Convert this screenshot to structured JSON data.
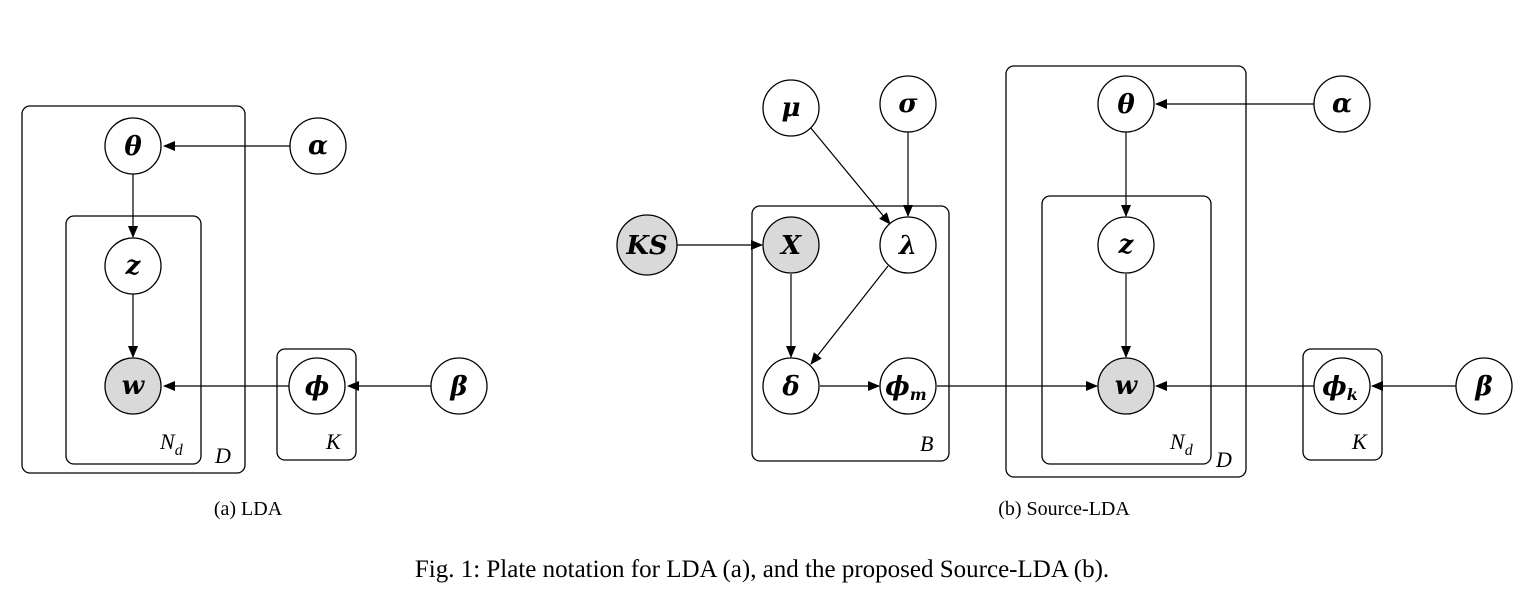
{
  "colors": {
    "stroke": "#000000",
    "observed_fill": "#d9d9d9",
    "latent_fill": "#ffffff"
  },
  "lda": {
    "subcaption": "(a) LDA",
    "nodes": {
      "theta": "θ",
      "alpha": "α",
      "z": "z",
      "w": "w",
      "phi": "ϕ",
      "beta": "β"
    },
    "plates": {
      "D": "D",
      "Nd": {
        "base": "N",
        "sub": "d"
      },
      "K": "K"
    }
  },
  "source_lda": {
    "subcaption": "(b) Source-LDA",
    "nodes": {
      "mu": "μ",
      "sigma": "σ",
      "theta": "θ",
      "alpha": "α",
      "ks": "KS",
      "x": "X",
      "lambda": "λ",
      "z": "z",
      "delta": "δ",
      "phi_m": {
        "base": "ϕ",
        "sub": "m"
      },
      "w": "w",
      "phi_k": {
        "base": "ϕ",
        "sub": "k"
      },
      "beta": "β"
    },
    "plates": {
      "B": "B",
      "D": "D",
      "Nd": {
        "base": "N",
        "sub": "d"
      },
      "K": "K"
    }
  },
  "caption": "Fig. 1: Plate notation for LDA (a), and the proposed Source-LDA (b)."
}
